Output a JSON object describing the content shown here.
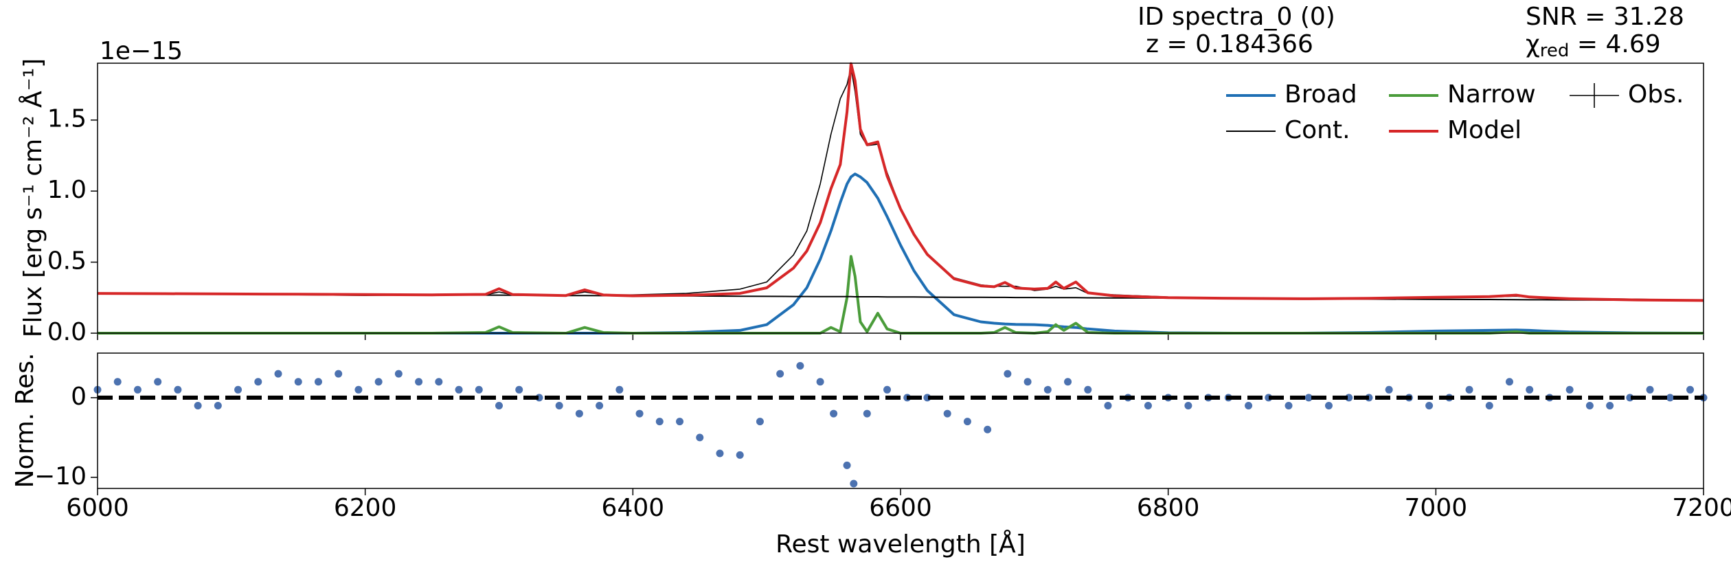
{
  "chart_data": [
    {
      "type": "line",
      "annotations": {
        "id": "ID spectra_0 (0)",
        "z": "z = 0.184366",
        "snr": "SNR = 31.28",
        "chi_symbol": "χ",
        "chi_subscript": "red",
        "chi_value": " = 4.69"
      },
      "offset_text": "1e−15",
      "ylabel": "Flux [erg s⁻¹ cm⁻² Å⁻¹]",
      "xlim": [
        6000,
        7200
      ],
      "xticks": [
        6000,
        6200,
        6400,
        6600,
        6800,
        7000,
        7200
      ],
      "ylim": [
        0,
        1.9
      ],
      "yticks": [
        {
          "value": 0,
          "label": "0.0"
        },
        0.5,
        {
          "value": 1,
          "label": "1.0"
        },
        1.5
      ],
      "legend_loc": "upper right",
      "x": [
        6000,
        6050,
        6100,
        6150,
        6200,
        6250,
        6290,
        6300,
        6310,
        6350,
        6364,
        6378,
        6400,
        6440,
        6480,
        6500,
        6520,
        6530,
        6540,
        6548,
        6555,
        6560,
        6563,
        6566,
        6570,
        6575,
        6583,
        6590,
        6600,
        6610,
        6620,
        6640,
        6660,
        6670,
        6678,
        6686,
        6700,
        6710,
        6716,
        6722,
        6731,
        6740,
        6760,
        6800,
        6850,
        6900,
        6950,
        7000,
        7040,
        7060,
        7070,
        7080,
        7100,
        7150,
        7200
      ],
      "series": [
        {
          "name": "Broad",
          "color": "#1f6fb4",
          "style": "line",
          "values": [
            0,
            0,
            0,
            0,
            0,
            0,
            0,
            0,
            0,
            0,
            0,
            0,
            0,
            0.005,
            0.02,
            0.06,
            0.2,
            0.32,
            0.52,
            0.72,
            0.92,
            1.05,
            1.1,
            1.12,
            1.1,
            1.06,
            0.95,
            0.82,
            0.62,
            0.44,
            0.3,
            0.13,
            0.08,
            0.07,
            0.065,
            0.062,
            0.06,
            0.055,
            0.05,
            0.045,
            0.04,
            0.03,
            0.015,
            0.003,
            0,
            0,
            0.005,
            0.015,
            0.02,
            0.022,
            0.02,
            0.015,
            0.008,
            0.002,
            0
          ]
        },
        {
          "name": "Narrow",
          "color": "#4a9c3a",
          "style": "line",
          "values": [
            0,
            0,
            0,
            0,
            0,
            0,
            0.005,
            0.045,
            0.005,
            0,
            0.04,
            0.005,
            0,
            0,
            0,
            0,
            0,
            0,
            0,
            0.04,
            0.01,
            0.25,
            0.54,
            0.4,
            0.08,
            0.01,
            0.14,
            0.03,
            0,
            0,
            0,
            0,
            0,
            0.005,
            0.04,
            0.005,
            0,
            0.01,
            0.06,
            0.02,
            0.07,
            0.005,
            0,
            0,
            0,
            0,
            0,
            0,
            0,
            0.01,
            0,
            0,
            0,
            0,
            0
          ]
        },
        {
          "name": "Obs.",
          "color": "#000000",
          "style": "errorbar",
          "values": [
            0.28,
            0.275,
            0.28,
            0.27,
            0.265,
            0.27,
            0.27,
            0.29,
            0.27,
            0.265,
            0.29,
            0.27,
            0.27,
            0.28,
            0.31,
            0.36,
            0.55,
            0.72,
            1.05,
            1.4,
            1.65,
            1.75,
            1.87,
            1.7,
            1.4,
            1.32,
            1.33,
            1.13,
            0.88,
            0.7,
            0.56,
            0.39,
            0.34,
            0.33,
            0.33,
            0.33,
            0.3,
            0.31,
            0.33,
            0.31,
            0.32,
            0.28,
            0.27,
            0.255,
            0.245,
            0.245,
            0.25,
            0.25,
            0.255,
            0.26,
            0.255,
            0.25,
            0.245,
            0.24,
            0.23
          ]
        },
        {
          "name": "Cont.",
          "color": "#000000",
          "style": "line",
          "values": [
            0.28,
            0.278,
            0.276,
            0.274,
            0.272,
            0.27,
            0.268,
            0.268,
            0.267,
            0.265,
            0.265,
            0.264,
            0.263,
            0.262,
            0.26,
            0.259,
            0.258,
            0.258,
            0.257,
            0.257,
            0.257,
            0.257,
            0.257,
            0.256,
            0.256,
            0.256,
            0.256,
            0.255,
            0.255,
            0.255,
            0.254,
            0.253,
            0.253,
            0.252,
            0.252,
            0.251,
            0.251,
            0.25,
            0.25,
            0.25,
            0.25,
            0.249,
            0.248,
            0.247,
            0.245,
            0.242,
            0.24,
            0.238,
            0.237,
            0.236,
            0.235,
            0.235,
            0.234,
            0.232,
            0.23
          ]
        },
        {
          "name": "Model",
          "color": "#d62728",
          "style": "line",
          "values": [
            0.28,
            0.278,
            0.276,
            0.274,
            0.272,
            0.27,
            0.273,
            0.313,
            0.272,
            0.265,
            0.305,
            0.269,
            0.263,
            0.267,
            0.28,
            0.319,
            0.458,
            0.578,
            0.777,
            1.017,
            1.187,
            1.557,
            1.897,
            1.776,
            1.436,
            1.326,
            1.346,
            1.105,
            0.875,
            0.695,
            0.554,
            0.383,
            0.333,
            0.327,
            0.357,
            0.318,
            0.311,
            0.315,
            0.36,
            0.315,
            0.36,
            0.284,
            0.263,
            0.25,
            0.245,
            0.242,
            0.245,
            0.253,
            0.257,
            0.268,
            0.255,
            0.25,
            0.242,
            0.234,
            0.23
          ]
        }
      ]
    },
    {
      "type": "scatter",
      "ylabel": "Norm. Res.",
      "xlabel": "Rest wavelength [Å]",
      "xlim": [
        6000,
        7200
      ],
      "xticks": [
        6000,
        6200,
        6400,
        6600,
        6800,
        7000,
        7200
      ],
      "ylim": [
        -11.4,
        5.6
      ],
      "yticks": [
        {
          "value": -10,
          "label": "−10"
        },
        0
      ],
      "hline": 0,
      "color": "#4c72b0",
      "x": [
        6000,
        6015,
        6030,
        6045,
        6060,
        6075,
        6090,
        6105,
        6120,
        6135,
        6150,
        6165,
        6180,
        6195,
        6210,
        6225,
        6240,
        6255,
        6270,
        6285,
        6300,
        6315,
        6330,
        6345,
        6360,
        6375,
        6390,
        6405,
        6420,
        6435,
        6450,
        6465,
        6480,
        6495,
        6510,
        6525,
        6540,
        6550,
        6560,
        6565,
        6575,
        6590,
        6605,
        6620,
        6635,
        6650,
        6665,
        6680,
        6695,
        6710,
        6725,
        6740,
        6755,
        6770,
        6785,
        6800,
        6815,
        6830,
        6845,
        6860,
        6875,
        6890,
        6905,
        6920,
        6935,
        6950,
        6965,
        6980,
        6995,
        7010,
        7025,
        7040,
        7055,
        7070,
        7085,
        7100,
        7115,
        7130,
        7145,
        7160,
        7175,
        7190,
        7200
      ],
      "values": [
        1,
        2,
        1,
        2,
        1,
        -1,
        -1,
        1,
        2,
        3,
        2,
        2,
        3,
        1,
        2,
        3,
        2,
        2,
        1,
        1,
        -1,
        1,
        0,
        -1,
        -2,
        -1,
        1,
        -2,
        -3,
        -3,
        -5,
        -7,
        -7.2,
        -3,
        3,
        4,
        2,
        -2,
        -8.5,
        -10.8,
        -2,
        1,
        0,
        0,
        -2,
        -3,
        -4,
        3,
        2,
        1,
        2,
        1,
        -1,
        0,
        -1,
        0,
        -1,
        0,
        0,
        -1,
        0,
        -1,
        0,
        -1,
        0,
        0,
        1,
        0,
        -1,
        0,
        1,
        -1,
        2,
        1,
        0,
        1,
        -1,
        -1,
        0,
        1,
        0,
        1,
        0
      ]
    }
  ]
}
